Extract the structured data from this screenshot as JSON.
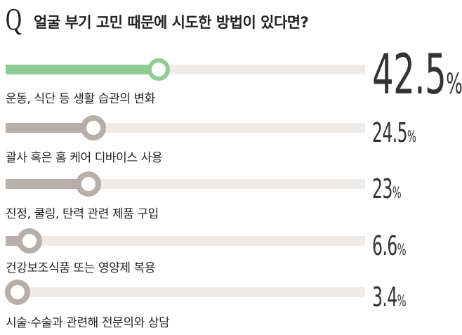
{
  "header": {
    "q_letter": "Q",
    "title": "얼굴 부기 고민 때문에 시도한 방법이 있다면?"
  },
  "colors": {
    "highlight": "#8fcc94",
    "bar": "#b9aea7",
    "track": "#eeebe9"
  },
  "chart_data": {
    "type": "bar",
    "orientation": "horizontal",
    "title": "얼굴 부기 고민 때문에 시도한 방법이 있다면?",
    "unit": "%",
    "xlim": [
      0,
      100
    ],
    "categories": [
      "운동, 식단 등 생활 습관의 변화",
      "괄사 혹은 홈 케어 디바이스 사용",
      "진정, 쿨링, 탄력 관련 제품 구입",
      "건강보조식품 또는 영양제 복용",
      "시술·수술과 관련해 전문의와 상담"
    ],
    "values": [
      42.5,
      24.5,
      23,
      6.6,
      3.4
    ],
    "value_labels": [
      "42.5",
      "24.5",
      "23",
      "6.6",
      "3.4"
    ],
    "highlight_index": 0
  }
}
